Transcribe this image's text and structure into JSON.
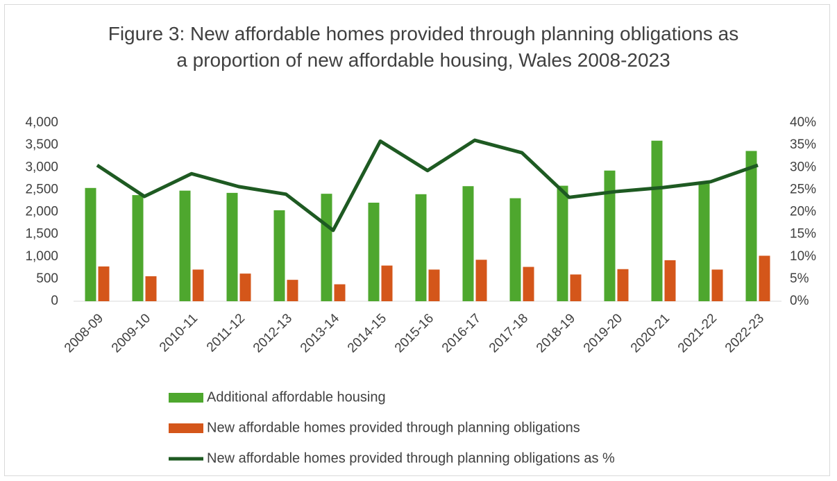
{
  "chart_data": {
    "type": "bar_line",
    "title": "Figure 3: New affordable homes provided through planning obligations as a proportion of new affordable housing, Wales 2008-2023",
    "categories": [
      "2008-09",
      "2009-10",
      "2010-11",
      "2011-12",
      "2012-13",
      "2013-14",
      "2014-15",
      "2015-16",
      "2016-17",
      "2017-18",
      "2018-19",
      "2019-20",
      "2020-21",
      "2021-22",
      "2022-23"
    ],
    "series": [
      {
        "name": "Additional affordable housing",
        "type": "bar",
        "color": "#4ea72e",
        "values": [
          2540,
          2380,
          2480,
          2430,
          2040,
          2410,
          2210,
          2400,
          2580,
          2310,
          2590,
          2930,
          3600,
          2680,
          3370
        ]
      },
      {
        "name": "New affordable homes  provided through planning obligations",
        "type": "bar",
        "color": "#d4561a",
        "values": [
          780,
          560,
          710,
          620,
          480,
          380,
          800,
          710,
          930,
          770,
          600,
          720,
          920,
          710,
          1020
        ]
      },
      {
        "name": "New affordable homes  provided through planning obligations as %",
        "type": "line",
        "axis": "y2",
        "color": "#1e5a22",
        "values": [
          30.5,
          23.5,
          28.6,
          25.7,
          24.0,
          15.9,
          35.9,
          29.3,
          36.1,
          33.3,
          23.3,
          24.6,
          25.5,
          26.8,
          30.5
        ]
      }
    ],
    "ylim": [
      0,
      4000
    ],
    "yticks": [
      0,
      500,
      {
        "value": 1000,
        "label": "1,000"
      },
      {
        "value": 1500,
        "label": "1,500"
      },
      {
        "value": 2000,
        "label": "2,000"
      },
      {
        "value": 2500,
        "label": "2,500"
      },
      {
        "value": 3000,
        "label": "3,000"
      },
      {
        "value": 3500,
        "label": "3,500"
      },
      {
        "value": 4000,
        "label": "4,000"
      }
    ],
    "y2lim": [
      0,
      40
    ],
    "y2ticks": [
      {
        "value": 0,
        "label": "0%"
      },
      {
        "value": 5,
        "label": "5%"
      },
      {
        "value": 10,
        "label": "10%"
      },
      {
        "value": 15,
        "label": "15%"
      },
      {
        "value": 20,
        "label": "20%"
      },
      {
        "value": 25,
        "label": "25%"
      },
      {
        "value": 30,
        "label": "30%"
      },
      {
        "value": 35,
        "label": "35%"
      },
      {
        "value": 40,
        "label": "40%"
      }
    ],
    "legend": "bottom"
  }
}
